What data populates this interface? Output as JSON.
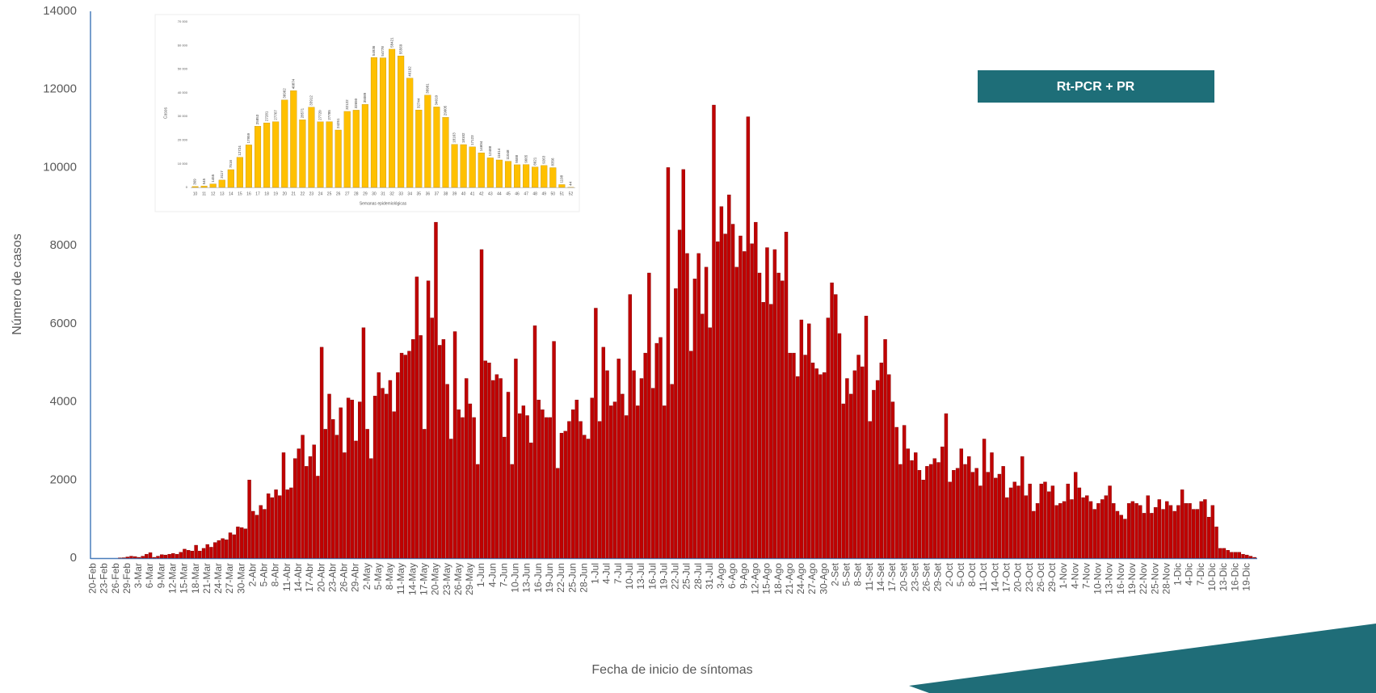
{
  "chart_data": [
    {
      "type": "bar",
      "x_label": "Fecha de inicio de síntomas",
      "y_label": "Número de casos",
      "annotation": "Rt-PCR + PR",
      "color": "#c00000",
      "ylim": [
        0,
        14000
      ],
      "yticks": [
        0,
        2000,
        4000,
        6000,
        8000,
        10000,
        12000,
        14000
      ],
      "categories": [
        "20-Feb",
        null,
        null,
        "23-Feb",
        null,
        null,
        "26-Feb",
        null,
        null,
        "29-Feb",
        null,
        null,
        "3-Mar",
        null,
        null,
        "6-Mar",
        null,
        null,
        "9-Mar",
        null,
        null,
        "12-Mar",
        null,
        null,
        "15-Mar",
        null,
        null,
        "18-Mar",
        null,
        null,
        "21-Mar",
        null,
        null,
        "24-Mar",
        null,
        null,
        "27-Mar",
        null,
        null,
        "30-Mar",
        null,
        null,
        "2-Abr",
        null,
        null,
        "5-Abr",
        null,
        null,
        "8-Abr",
        null,
        null,
        "11-Abr",
        null,
        null,
        "14-Abr",
        null,
        null,
        "17-Abr",
        null,
        null,
        "20-Abr",
        null,
        null,
        "23-Abr",
        null,
        null,
        "26-Abr",
        null,
        null,
        "29-Abr",
        null,
        null,
        "2-May",
        null,
        null,
        "5-May",
        null,
        null,
        "8-May",
        null,
        null,
        "11-May",
        null,
        null,
        "14-May",
        null,
        null,
        "17-May",
        null,
        null,
        "20-May",
        null,
        null,
        "23-May",
        null,
        null,
        "26-May",
        null,
        null,
        "29-May",
        null,
        null,
        "1-Jun",
        null,
        null,
        "4-Jun",
        null,
        null,
        "7-Jun",
        null,
        null,
        "10-Jun",
        null,
        null,
        "13-Jun",
        null,
        null,
        "16-Jun",
        null,
        null,
        "19-Jun",
        null,
        null,
        "22-Jun",
        null,
        null,
        "25-Jun",
        null,
        null,
        "28-Jun",
        null,
        null,
        "1-Jul",
        null,
        null,
        "4-Jul",
        null,
        null,
        "7-Jul",
        null,
        null,
        "10-Jul",
        null,
        null,
        "13-Jul",
        null,
        null,
        "16-Jul",
        null,
        null,
        "19-Jul",
        null,
        null,
        "22-Jul",
        null,
        null,
        "25-Jul",
        null,
        null,
        "28-Jul",
        null,
        null,
        "31-Jul",
        null,
        null,
        "3-Ago",
        null,
        null,
        "6-Ago",
        null,
        null,
        "9-Ago",
        null,
        null,
        "12-Ago",
        null,
        null,
        "15-Ago",
        null,
        null,
        "18-Ago",
        null,
        null,
        "21-Ago",
        null,
        null,
        "24-Ago",
        null,
        null,
        "27-Ago",
        null,
        null,
        "30-Ago",
        null,
        null,
        "2-Set",
        null,
        null,
        "5-Set",
        null,
        null,
        "8-Set",
        null,
        null,
        "11-Set",
        null,
        null,
        "14-Set",
        null,
        null,
        "17-Set",
        null,
        null,
        "20-Set",
        null,
        null,
        "23-Set",
        null,
        null,
        "26-Set",
        null,
        null,
        "29-Set",
        null,
        null,
        "2-Oct",
        null,
        null,
        "5-Oct",
        null,
        null,
        "8-Oct",
        null,
        null,
        "11-Oct",
        null,
        null,
        "14-Oct",
        null,
        null,
        "17-Oct",
        null,
        null,
        "20-Oct",
        null,
        null,
        "23-Oct",
        null,
        null,
        "26-Oct",
        null,
        null,
        "29-Oct",
        null,
        null,
        "1-Nov",
        null,
        null,
        "4-Nov",
        null,
        null,
        "7-Nov",
        null,
        null,
        "10-Nov",
        null,
        null,
        "13-Nov",
        null,
        null,
        "16-Nov",
        null,
        null,
        "19-Nov",
        null,
        null,
        "22-Nov",
        null,
        null,
        "25-Nov",
        null,
        null,
        "28-Nov",
        null,
        null,
        "1-Dic",
        null,
        null,
        "4-Dic",
        null,
        null,
        "7-Dic",
        null,
        null,
        "10-Dic",
        null,
        null,
        "13-Dic",
        null,
        null,
        "16-Dic",
        null,
        null,
        "19-Dic",
        null,
        null
      ],
      "values": [
        0,
        0,
        0,
        0,
        0,
        0,
        0,
        5,
        10,
        30,
        50,
        40,
        20,
        50,
        100,
        140,
        20,
        50,
        90,
        80,
        100,
        120,
        100,
        150,
        230,
        200,
        180,
        330,
        180,
        250,
        350,
        280,
        400,
        450,
        500,
        470,
        650,
        600,
        800,
        780,
        750,
        2000,
        1200,
        1100,
        1350,
        1250,
        1650,
        1550,
        1750,
        1600,
        2700,
        1750,
        1800,
        2550,
        2800,
        3150,
        2350,
        2600,
        2900,
        2100,
        5400,
        3300,
        4200,
        3550,
        3150,
        3850,
        2700,
        4100,
        4050,
        3000,
        4000,
        5900,
        3300,
        2550,
        4150,
        4750,
        4350,
        4200,
        4550,
        3750,
        4750,
        5250,
        5200,
        5300,
        5600,
        7200,
        5700,
        3300,
        7100,
        6150,
        8600,
        5450,
        5600,
        4450,
        3050,
        5800,
        3800,
        3600,
        4600,
        3950,
        3600,
        2400,
        7900,
        5050,
        5000,
        4550,
        4700,
        4600,
        3100,
        4250,
        2400,
        5100,
        3700,
        3900,
        3650,
        2950,
        5950,
        4050,
        3800,
        3600,
        3600,
        5550,
        2300,
        3200,
        3250,
        3500,
        3800,
        4050,
        3500,
        3150,
        3050,
        4100,
        6400,
        3500,
        5400,
        4800,
        3900,
        4000,
        5100,
        4200,
        3650,
        6750,
        4800,
        3900,
        4600,
        5250,
        7300,
        4350,
        5500,
        5650,
        3900,
        10000,
        4450,
        6900,
        8400,
        9950,
        7800,
        5300,
        7150,
        7800,
        6250,
        7450,
        5900,
        11600,
        8100,
        9000,
        8300,
        9300,
        8550,
        7450,
        8250,
        7850,
        11300,
        8050,
        8600,
        7300,
        6550,
        7950,
        6500,
        7900,
        7300,
        7100,
        8350,
        5250,
        5250,
        4650,
        6100,
        5200,
        6000,
        5000,
        4850,
        4700,
        4750,
        6150,
        7050,
        6750,
        5750,
        3950,
        4600,
        4200,
        4800,
        5200,
        4900,
        6200,
        3500,
        4300,
        4550,
        5000,
        5600,
        4700,
        4000,
        3350,
        2400,
        3400,
        2800,
        2500,
        2700,
        2250,
        2000,
        2350,
        2400,
        2550,
        2450,
        2850,
        3700,
        1950,
        2250,
        2300,
        2800,
        2400,
        2600,
        2200,
        2300,
        1850,
        3050,
        2200,
        2700,
        2050,
        2150,
        2350,
        1550,
        1800,
        1950,
        1850,
        2600,
        1600,
        1900,
        1200,
        1400,
        1900,
        1950,
        1700,
        1850,
        1350,
        1400,
        1450,
        1900,
        1500,
        2200,
        1800,
        1550,
        1600,
        1450,
        1250,
        1400,
        1500,
        1600,
        1850,
        1400,
        1200,
        1100,
        1000,
        1400,
        1450,
        1400,
        1350,
        1150,
        1600,
        1150,
        1300,
        1500,
        1250,
        1450,
        1350,
        1200,
        1350,
        1750,
        1400,
        1400,
        1250,
        1250,
        1450,
        1500,
        1050,
        1350,
        800,
        250,
        250,
        200,
        150,
        150,
        150,
        100,
        80,
        50,
        20
      ]
    },
    {
      "type": "bar",
      "x_label": "Semanas epidemiológicas",
      "y_label": "Casos",
      "color": "#ffc000",
      "data_labels": true,
      "ylim": [
        0,
        70000
      ],
      "yticks": [
        0,
        {
          "value": 10000,
          "label": "10 000"
        },
        {
          "value": 20000,
          "label": "20 000"
        },
        {
          "value": 30000,
          "label": "30 000"
        },
        {
          "value": 40000,
          "label": "40 000"
        },
        {
          "value": 50000,
          "label": "50 000"
        },
        {
          "value": 60000,
          "label": "60 000"
        },
        {
          "value": 70000,
          "label": "70 000"
        }
      ],
      "categories": [
        "10",
        "11",
        "12",
        "13",
        "14",
        "15",
        "16",
        "17",
        "18",
        "19",
        "20",
        "21",
        "22",
        "23",
        "24",
        "25",
        "26",
        "27",
        "28",
        "29",
        "30",
        "31",
        "32",
        "33",
        "34",
        "35",
        "36",
        "37",
        "38",
        "39",
        "40",
        "41",
        "42",
        "43",
        "44",
        "45",
        "46",
        "47",
        "48",
        "49",
        "50",
        "51",
        "52"
      ],
      "values": [
        369,
        545,
        1455,
        3117,
        7516,
        12724,
        17959,
        25853,
        27281,
        27767,
        36962,
        40874,
        28571,
        33912,
        27720,
        27785,
        24251,
        32122,
        32650,
        35089,
        54936,
        54778,
        58421,
        55569,
        46192,
        32744,
        38981,
        34010,
        29605,
        18163,
        18102,
        17123,
        14604,
        12488,
        11614,
        11048,
        9588,
        9665,
        8621,
        9263,
        8356,
        1198,
        44
      ]
    }
  ]
}
